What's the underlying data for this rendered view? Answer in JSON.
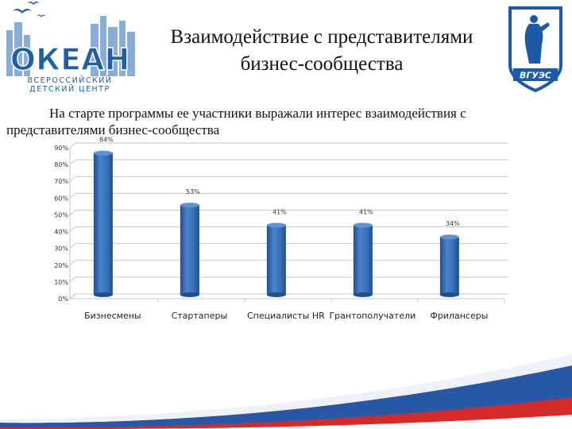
{
  "header": {
    "title": "Взаимодействие с представителями бизнес-сообщества",
    "subtitle": "На старте программы ее участники выражали интерес взаимодействия с представителями бизнес-сообщества"
  },
  "logos": {
    "left": {
      "name": "ОКЕАН",
      "caption_1": "ВСЕРОССИЙСКИЙ",
      "caption_2": "ДЕТСКИЙ ЦЕНТР",
      "color": "#1f5fa8"
    },
    "right": {
      "name": "ВГУЭС",
      "color": "#1d5aa6"
    }
  },
  "colors": {
    "bar_fill": "#3a70b6",
    "bar_dark": "#1f4e8c",
    "bar_top": "#5f93d6",
    "axis": "#c7c7c7",
    "flag_white": "#ffffff",
    "flag_blue": "#2758a8",
    "flag_red": "#d42a2a"
  },
  "chart_data": {
    "type": "bar",
    "categories": [
      "Бизнесмены",
      "Стартаперы",
      "Специалисты HR",
      "Грантополучатели",
      "Фрилансеры"
    ],
    "values": [
      84,
      53,
      41,
      41,
      34
    ],
    "value_labels": [
      "84%",
      "53%",
      "41%",
      "41%",
      "34%"
    ],
    "y_ticks": [
      0,
      10,
      20,
      30,
      40,
      50,
      60,
      70,
      80,
      90
    ],
    "y_tick_labels": [
      "0%",
      "10%",
      "20%",
      "30%",
      "40%",
      "50%",
      "60%",
      "70%",
      "80%",
      "90%"
    ],
    "ylim": [
      0,
      90
    ],
    "xlabel": "",
    "ylabel": "",
    "grid": true,
    "legend": "none"
  }
}
